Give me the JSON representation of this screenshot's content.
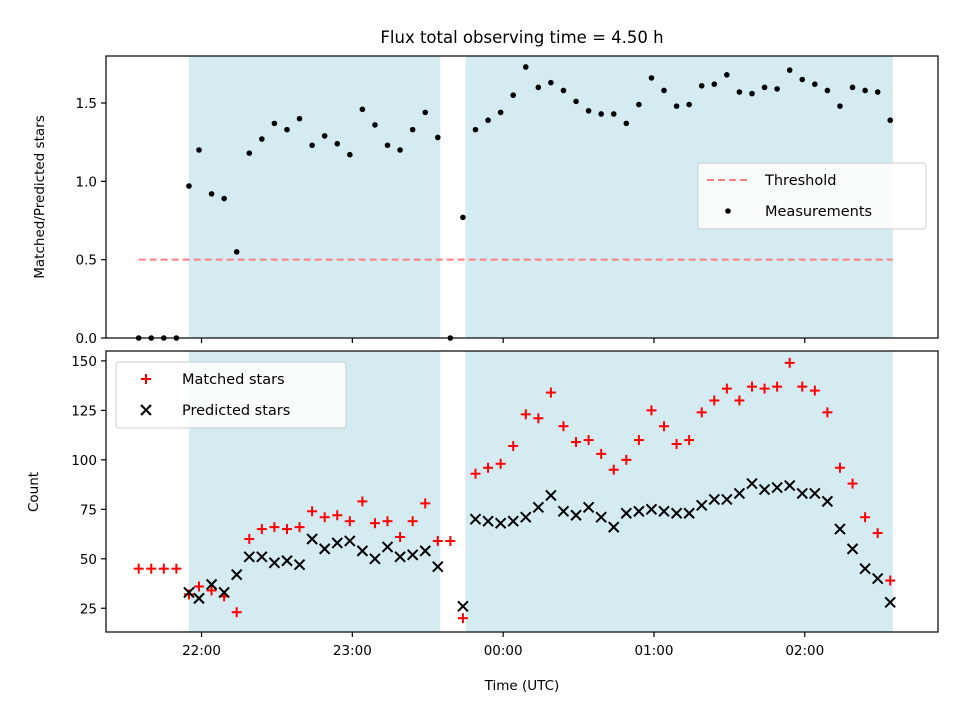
{
  "chart_data": [
    {
      "type": "scatter",
      "title": "Flux total observing time = 4.50 h",
      "xlabel": "",
      "ylabel": "Matched/Predicted stars",
      "ylim": [
        0,
        1.8
      ],
      "yticks": [
        0.0,
        0.5,
        1.0,
        1.5
      ],
      "ytick_labels": [
        "0.0",
        "0.5",
        "1.0",
        "1.5"
      ],
      "xlim": [
        "21:22",
        "02:53"
      ],
      "xticks": [
        "22:00",
        "23:00",
        "00:00",
        "01:00",
        "02:00"
      ],
      "shaded_intervals": [
        [
          "21:55",
          "23:35"
        ],
        [
          "23:45",
          "02:35"
        ]
      ],
      "shade_color": "#add8e6",
      "grid": false,
      "legend_placement": "center-right",
      "series": [
        {
          "name": "Threshold",
          "style": "dashed-line",
          "color": "#ff8080",
          "x": [
            "21:35",
            "02:35"
          ],
          "y": [
            0.5,
            0.5
          ]
        },
        {
          "name": "Measurements",
          "style": "dot",
          "color": "#000000",
          "points": [
            [
              "21:35",
              0.0
            ],
            [
              "21:40",
              0.0
            ],
            [
              "21:45",
              0.0
            ],
            [
              "21:50",
              0.0
            ],
            [
              "21:55",
              0.97
            ],
            [
              "21:59",
              1.2
            ],
            [
              "22:04",
              0.92
            ],
            [
              "22:09",
              0.89
            ],
            [
              "22:14",
              0.55
            ],
            [
              "22:19",
              1.18
            ],
            [
              "22:24",
              1.27
            ],
            [
              "22:29",
              1.37
            ],
            [
              "22:34",
              1.33
            ],
            [
              "22:39",
              1.4
            ],
            [
              "22:44",
              1.23
            ],
            [
              "22:49",
              1.29
            ],
            [
              "22:54",
              1.24
            ],
            [
              "22:59",
              1.17
            ],
            [
              "23:04",
              1.46
            ],
            [
              "23:09",
              1.36
            ],
            [
              "23:14",
              1.23
            ],
            [
              "23:19",
              1.2
            ],
            [
              "23:24",
              1.33
            ],
            [
              "23:29",
              1.44
            ],
            [
              "23:34",
              1.28
            ],
            [
              "23:39",
              0.0
            ],
            [
              "23:44",
              0.77
            ],
            [
              "23:49",
              1.33
            ],
            [
              "23:54",
              1.39
            ],
            [
              "23:59",
              1.44
            ],
            [
              "00:04",
              1.55
            ],
            [
              "00:09",
              1.73
            ],
            [
              "00:14",
              1.6
            ],
            [
              "00:19",
              1.63
            ],
            [
              "00:24",
              1.58
            ],
            [
              "00:29",
              1.51
            ],
            [
              "00:34",
              1.45
            ],
            [
              "00:39",
              1.43
            ],
            [
              "00:44",
              1.43
            ],
            [
              "00:49",
              1.37
            ],
            [
              "00:54",
              1.49
            ],
            [
              "00:59",
              1.66
            ],
            [
              "01:04",
              1.58
            ],
            [
              "01:09",
              1.48
            ],
            [
              "01:14",
              1.49
            ],
            [
              "01:19",
              1.61
            ],
            [
              "01:24",
              1.62
            ],
            [
              "01:29",
              1.68
            ],
            [
              "01:34",
              1.57
            ],
            [
              "01:39",
              1.56
            ],
            [
              "01:44",
              1.6
            ],
            [
              "01:49",
              1.59
            ],
            [
              "01:54",
              1.71
            ],
            [
              "01:59",
              1.65
            ],
            [
              "02:04",
              1.62
            ],
            [
              "02:09",
              1.58
            ],
            [
              "02:14",
              1.48
            ],
            [
              "02:19",
              1.6
            ],
            [
              "02:24",
              1.58
            ],
            [
              "02:29",
              1.57
            ],
            [
              "02:34",
              1.39
            ]
          ]
        }
      ]
    },
    {
      "type": "scatter",
      "title": "",
      "xlabel": "Time (UTC)",
      "ylabel": "Count",
      "ylim": [
        13,
        155
      ],
      "yticks": [
        25,
        50,
        75,
        100,
        125,
        150
      ],
      "ytick_labels": [
        "25",
        "50",
        "75",
        "100",
        "125",
        "150"
      ],
      "xlim": [
        "21:22",
        "02:53"
      ],
      "xticks": [
        "22:00",
        "23:00",
        "00:00",
        "01:00",
        "02:00"
      ],
      "xtick_labels": [
        "22:00",
        "23:00",
        "00:00",
        "01:00",
        "02:00"
      ],
      "shaded_intervals": [
        [
          "21:55",
          "23:35"
        ],
        [
          "23:45",
          "02:35"
        ]
      ],
      "shade_color": "#add8e6",
      "grid": false,
      "legend_placement": "top-left",
      "series": [
        {
          "name": "Matched stars",
          "marker": "plus",
          "color": "#ff0000",
          "points": [
            [
              "21:35",
              45
            ],
            [
              "21:40",
              45
            ],
            [
              "21:45",
              45
            ],
            [
              "21:50",
              45
            ],
            [
              "21:55",
              32
            ],
            [
              "21:59",
              36
            ],
            [
              "22:04",
              34
            ],
            [
              "22:09",
              31
            ],
            [
              "22:14",
              23
            ],
            [
              "22:19",
              60
            ],
            [
              "22:24",
              65
            ],
            [
              "22:29",
              66
            ],
            [
              "22:34",
              65
            ],
            [
              "22:39",
              66
            ],
            [
              "22:44",
              74
            ],
            [
              "22:49",
              71
            ],
            [
              "22:54",
              72
            ],
            [
              "22:59",
              69
            ],
            [
              "23:04",
              79
            ],
            [
              "23:09",
              68
            ],
            [
              "23:14",
              69
            ],
            [
              "23:19",
              61
            ],
            [
              "23:24",
              69
            ],
            [
              "23:29",
              78
            ],
            [
              "23:34",
              59
            ],
            [
              "23:39",
              59
            ],
            [
              "23:44",
              20
            ],
            [
              "23:49",
              93
            ],
            [
              "23:54",
              96
            ],
            [
              "23:59",
              98
            ],
            [
              "00:04",
              107
            ],
            [
              "00:09",
              123
            ],
            [
              "00:14",
              121
            ],
            [
              "00:19",
              134
            ],
            [
              "00:24",
              117
            ],
            [
              "00:29",
              109
            ],
            [
              "00:34",
              110
            ],
            [
              "00:39",
              103
            ],
            [
              "00:44",
              95
            ],
            [
              "00:49",
              100
            ],
            [
              "00:54",
              110
            ],
            [
              "00:59",
              125
            ],
            [
              "01:04",
              117
            ],
            [
              "01:09",
              108
            ],
            [
              "01:14",
              110
            ],
            [
              "01:19",
              124
            ],
            [
              "01:24",
              130
            ],
            [
              "01:29",
              136
            ],
            [
              "01:34",
              130
            ],
            [
              "01:39",
              137
            ],
            [
              "01:44",
              136
            ],
            [
              "01:49",
              137
            ],
            [
              "01:54",
              149
            ],
            [
              "01:59",
              137
            ],
            [
              "02:04",
              135
            ],
            [
              "02:09",
              124
            ],
            [
              "02:14",
              96
            ],
            [
              "02:19",
              88
            ],
            [
              "02:24",
              71
            ],
            [
              "02:29",
              63
            ],
            [
              "02:34",
              39
            ]
          ]
        },
        {
          "name": "Predicted stars",
          "marker": "cross",
          "color": "#000000",
          "points": [
            [
              "21:55",
              33
            ],
            [
              "21:59",
              30
            ],
            [
              "22:04",
              37
            ],
            [
              "22:09",
              33
            ],
            [
              "22:14",
              42
            ],
            [
              "22:19",
              51
            ],
            [
              "22:24",
              51
            ],
            [
              "22:29",
              48
            ],
            [
              "22:34",
              49
            ],
            [
              "22:39",
              47
            ],
            [
              "22:44",
              60
            ],
            [
              "22:49",
              55
            ],
            [
              "22:54",
              58
            ],
            [
              "22:59",
              59
            ],
            [
              "23:04",
              54
            ],
            [
              "23:09",
              50
            ],
            [
              "23:14",
              56
            ],
            [
              "23:19",
              51
            ],
            [
              "23:24",
              52
            ],
            [
              "23:29",
              54
            ],
            [
              "23:34",
              46
            ],
            [
              "23:44",
              26
            ],
            [
              "23:49",
              70
            ],
            [
              "23:54",
              69
            ],
            [
              "23:59",
              68
            ],
            [
              "00:04",
              69
            ],
            [
              "00:09",
              71
            ],
            [
              "00:14",
              76
            ],
            [
              "00:19",
              82
            ],
            [
              "00:24",
              74
            ],
            [
              "00:29",
              72
            ],
            [
              "00:34",
              76
            ],
            [
              "00:39",
              71
            ],
            [
              "00:44",
              66
            ],
            [
              "00:49",
              73
            ],
            [
              "00:54",
              74
            ],
            [
              "00:59",
              75
            ],
            [
              "01:04",
              74
            ],
            [
              "01:09",
              73
            ],
            [
              "01:14",
              73
            ],
            [
              "01:19",
              77
            ],
            [
              "01:24",
              80
            ],
            [
              "01:29",
              80
            ],
            [
              "01:34",
              83
            ],
            [
              "01:39",
              88
            ],
            [
              "01:44",
              85
            ],
            [
              "01:49",
              86
            ],
            [
              "01:54",
              87
            ],
            [
              "01:59",
              83
            ],
            [
              "02:04",
              83
            ],
            [
              "02:09",
              79
            ],
            [
              "02:14",
              65
            ],
            [
              "02:19",
              55
            ],
            [
              "02:24",
              45
            ],
            [
              "02:29",
              40
            ],
            [
              "02:34",
              28
            ]
          ]
        }
      ]
    }
  ]
}
